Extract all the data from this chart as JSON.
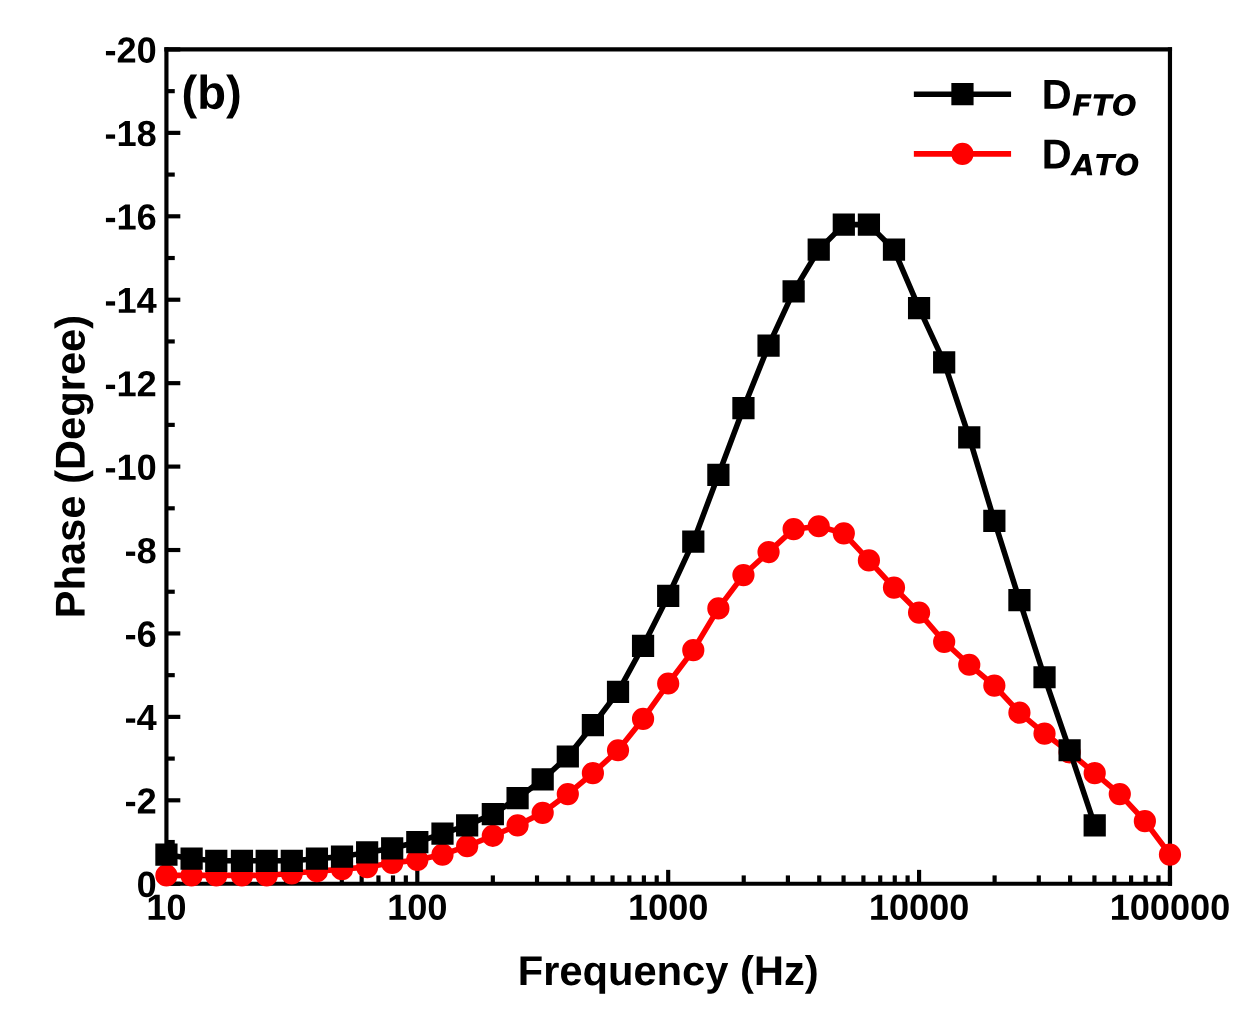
{
  "chart_data": {
    "type": "line",
    "xlabel": "Frequency (Hz)",
    "ylabel": "Phase (Degree)",
    "annotations": [
      "(b)"
    ],
    "log": "x",
    "xlim": [
      10,
      100000
    ],
    "xticks": [
      10,
      100,
      1000,
      10000,
      100000
    ],
    "ylim": [
      0,
      -20
    ],
    "yticks": [
      0,
      -2,
      -4,
      -6,
      -8,
      -10,
      -12,
      -14,
      -16,
      -18,
      -20
    ],
    "grid": false,
    "legend": "top right",
    "line_style": "solid",
    "series": [
      {
        "name": "D$_{FTO}$",
        "color": "#000000",
        "marker": "square",
        "x": [
          10,
          12.6,
          15.8,
          20,
          25.1,
          31.6,
          39.8,
          50.1,
          63.1,
          79.4,
          100,
          126,
          158,
          200,
          251,
          316,
          398,
          501,
          631,
          794,
          1000,
          1259,
          1585,
          1995,
          2512,
          3162,
          3981,
          5012,
          6310,
          7943,
          10000,
          12589,
          15849,
          19953,
          25119,
          31623,
          39811,
          50119
        ],
        "values": [
          -0.7,
          -0.6,
          -0.55,
          -0.55,
          -0.55,
          -0.55,
          -0.6,
          -0.65,
          -0.75,
          -0.85,
          -1.0,
          -1.2,
          -1.4,
          -1.67,
          -2.05,
          -2.5,
          -3.05,
          -3.8,
          -4.6,
          -5.7,
          -6.9,
          -8.2,
          -9.8,
          -11.4,
          -12.9,
          -14.2,
          -15.2,
          -15.8,
          -15.8,
          -15.2,
          -13.8,
          -12.5,
          -10.7,
          -8.7,
          -6.8,
          -4.95,
          -3.2,
          -1.4
        ]
      },
      {
        "name": "D$_{ATO}$",
        "color": "#ff0000",
        "marker": "circle",
        "x": [
          10,
          12.6,
          15.8,
          20,
          25.1,
          31.6,
          39.8,
          50.1,
          63.1,
          79.4,
          100,
          126,
          158,
          200,
          251,
          316,
          398,
          501,
          631,
          794,
          1000,
          1259,
          1585,
          1995,
          2512,
          3162,
          3981,
          5012,
          6310,
          7943,
          10000,
          12589,
          15849,
          19953,
          25119,
          31623,
          39811,
          50119,
          63096,
          79433,
          100000
        ],
        "values": [
          -0.2,
          -0.2,
          -0.2,
          -0.2,
          -0.2,
          -0.25,
          -0.3,
          -0.35,
          -0.4,
          -0.5,
          -0.57,
          -0.7,
          -0.9,
          -1.15,
          -1.4,
          -1.7,
          -2.15,
          -2.65,
          -3.2,
          -3.95,
          -4.8,
          -5.6,
          -6.6,
          -7.4,
          -7.95,
          -8.5,
          -8.57,
          -8.4,
          -7.75,
          -7.1,
          -6.5,
          -5.8,
          -5.25,
          -4.75,
          -4.1,
          -3.6,
          -3.15,
          -2.65,
          -2.15,
          -1.5,
          -0.7
        ]
      }
    ]
  }
}
